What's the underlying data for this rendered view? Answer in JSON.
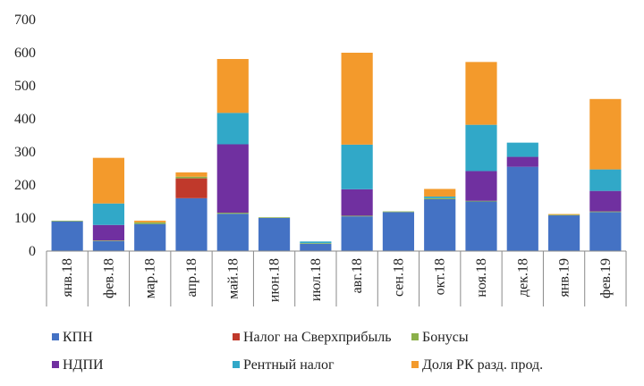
{
  "chart_data": {
    "type": "bar",
    "stacked": true,
    "categories": [
      "янв.18",
      "фев.18",
      "мар.18",
      "апр.18",
      "май.18",
      "июн.18",
      "июл.18",
      "авг.18",
      "сен.18",
      "окт.18",
      "ноя.18",
      "дек.18",
      "янв.19",
      "фев.19"
    ],
    "ylim": [
      0,
      700
    ],
    "yticks": [
      0,
      100,
      200,
      300,
      400,
      500,
      600,
      700
    ],
    "grid": false,
    "legend_position": "bottom",
    "series": [
      {
        "name": "КПН",
        "color": "#4472c4",
        "values": [
          90,
          30,
          82,
          160,
          113,
          100,
          22,
          105,
          118,
          157,
          150,
          255,
          108,
          118
        ]
      },
      {
        "name": "Налог на Сверхприбыль",
        "color": "#c0392b",
        "values": [
          0,
          0,
          0,
          60,
          0,
          0,
          0,
          0,
          0,
          0,
          0,
          0,
          0,
          0
        ]
      },
      {
        "name": "Бонусы",
        "color": "#8bb04a",
        "values": [
          2,
          2,
          5,
          5,
          3,
          2,
          2,
          2,
          2,
          3,
          2,
          0,
          2,
          2
        ]
      },
      {
        "name": "НДПИ",
        "color": "#7030a0",
        "values": [
          0,
          47,
          0,
          0,
          207,
          0,
          0,
          80,
          0,
          0,
          90,
          30,
          0,
          62
        ]
      },
      {
        "name": "Рентный налог",
        "color": "#31a8c8",
        "values": [
          0,
          65,
          0,
          0,
          95,
          0,
          5,
          135,
          0,
          5,
          140,
          43,
          0,
          65
        ]
      },
      {
        "name": "Доля РК разд. прод.",
        "color": "#f39a2c",
        "values": [
          0,
          138,
          5,
          13,
          163,
          0,
          0,
          278,
          0,
          23,
          190,
          0,
          2,
          213
        ]
      }
    ]
  }
}
